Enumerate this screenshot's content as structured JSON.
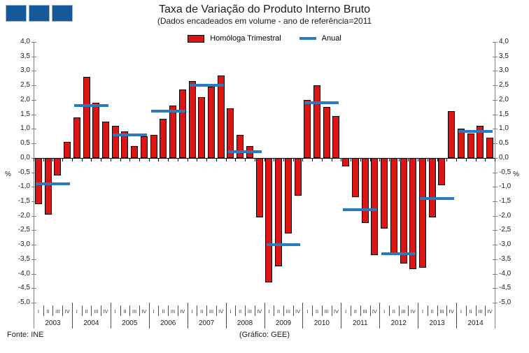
{
  "header": {
    "title": "Taxa de Variação do Produto Interno Bruto",
    "subtitle": "(Dados encadeados em volume - ano de referência=2011"
  },
  "legend": {
    "quarterly_label": "Homóloga Trimestral",
    "annual_label": "Anual"
  },
  "footer": {
    "source": "Fonte: INE",
    "credit": "(Gráfico: GEE)"
  },
  "colors": {
    "bar_fill": "#de1414",
    "bar_border": "#000000",
    "annual_line": "#2b79be",
    "logo_blue": "#15599b",
    "axis_gray": "#808080"
  },
  "chart_data": {
    "type": "bar",
    "title": "Taxa de Variação do Produto Interno Bruto",
    "subtitle": "(Dados encadeados em volume - ano de referência=2011",
    "ylabel": "%",
    "ylim": [
      -5.0,
      4.0
    ],
    "ytick_step": 0.5,
    "grid": false,
    "legend_position": "top-center",
    "ytick_labels": [
      "4,0",
      "3,5",
      "3,0",
      "2,5",
      "2,0",
      "1,5",
      "1,0",
      "0,5",
      "0,0",
      "-0,5",
      "-1,0",
      "-1,5",
      "-2,0",
      "-2,5",
      "-3,0",
      "-3,5",
      "-4,0",
      "-4,5",
      "-5,0"
    ],
    "quarter_labels": [
      "I",
      "II",
      "III",
      "IV"
    ],
    "series": [
      {
        "name": "Homóloga Trimestral",
        "type": "bar",
        "color": "#de1414"
      },
      {
        "name": "Anual",
        "type": "line",
        "color": "#2b79be"
      }
    ],
    "years": [
      {
        "year": "2003",
        "quarterly": [
          -1.6,
          -1.95,
          -0.6,
          0.55
        ],
        "annual": -0.9
      },
      {
        "year": "2004",
        "quarterly": [
          1.4,
          2.8,
          1.9,
          1.25
        ],
        "annual": 1.8
      },
      {
        "year": "2005",
        "quarterly": [
          1.1,
          0.9,
          0.4,
          0.75
        ],
        "annual": 0.8
      },
      {
        "year": "2006",
        "quarterly": [
          0.8,
          1.35,
          1.8,
          2.35
        ],
        "annual": 1.6
      },
      {
        "year": "2007",
        "quarterly": [
          2.65,
          2.1,
          2.45,
          2.85
        ],
        "annual": 2.5
      },
      {
        "year": "2008",
        "quarterly": [
          1.7,
          0.8,
          0.4,
          -2.05
        ],
        "annual": 0.2
      },
      {
        "year": "2009",
        "quarterly": [
          -4.3,
          -3.75,
          -2.6,
          -1.3
        ],
        "annual": -3.0
      },
      {
        "year": "2010",
        "quarterly": [
          2.0,
          2.5,
          1.75,
          1.45
        ],
        "annual": 1.9
      },
      {
        "year": "2011",
        "quarterly": [
          -0.3,
          -1.35,
          -2.25,
          -3.35
        ],
        "annual": -1.8
      },
      {
        "year": "2012",
        "quarterly": [
          -2.45,
          -3.3,
          -3.65,
          -3.85
        ],
        "annual": -3.3
      },
      {
        "year": "2013",
        "quarterly": [
          -3.8,
          -2.05,
          -0.95,
          1.6
        ],
        "annual": -1.4
      },
      {
        "year": "2014",
        "quarterly": [
          1.0,
          0.85,
          1.1,
          0.7
        ],
        "annual": 0.9
      }
    ]
  }
}
